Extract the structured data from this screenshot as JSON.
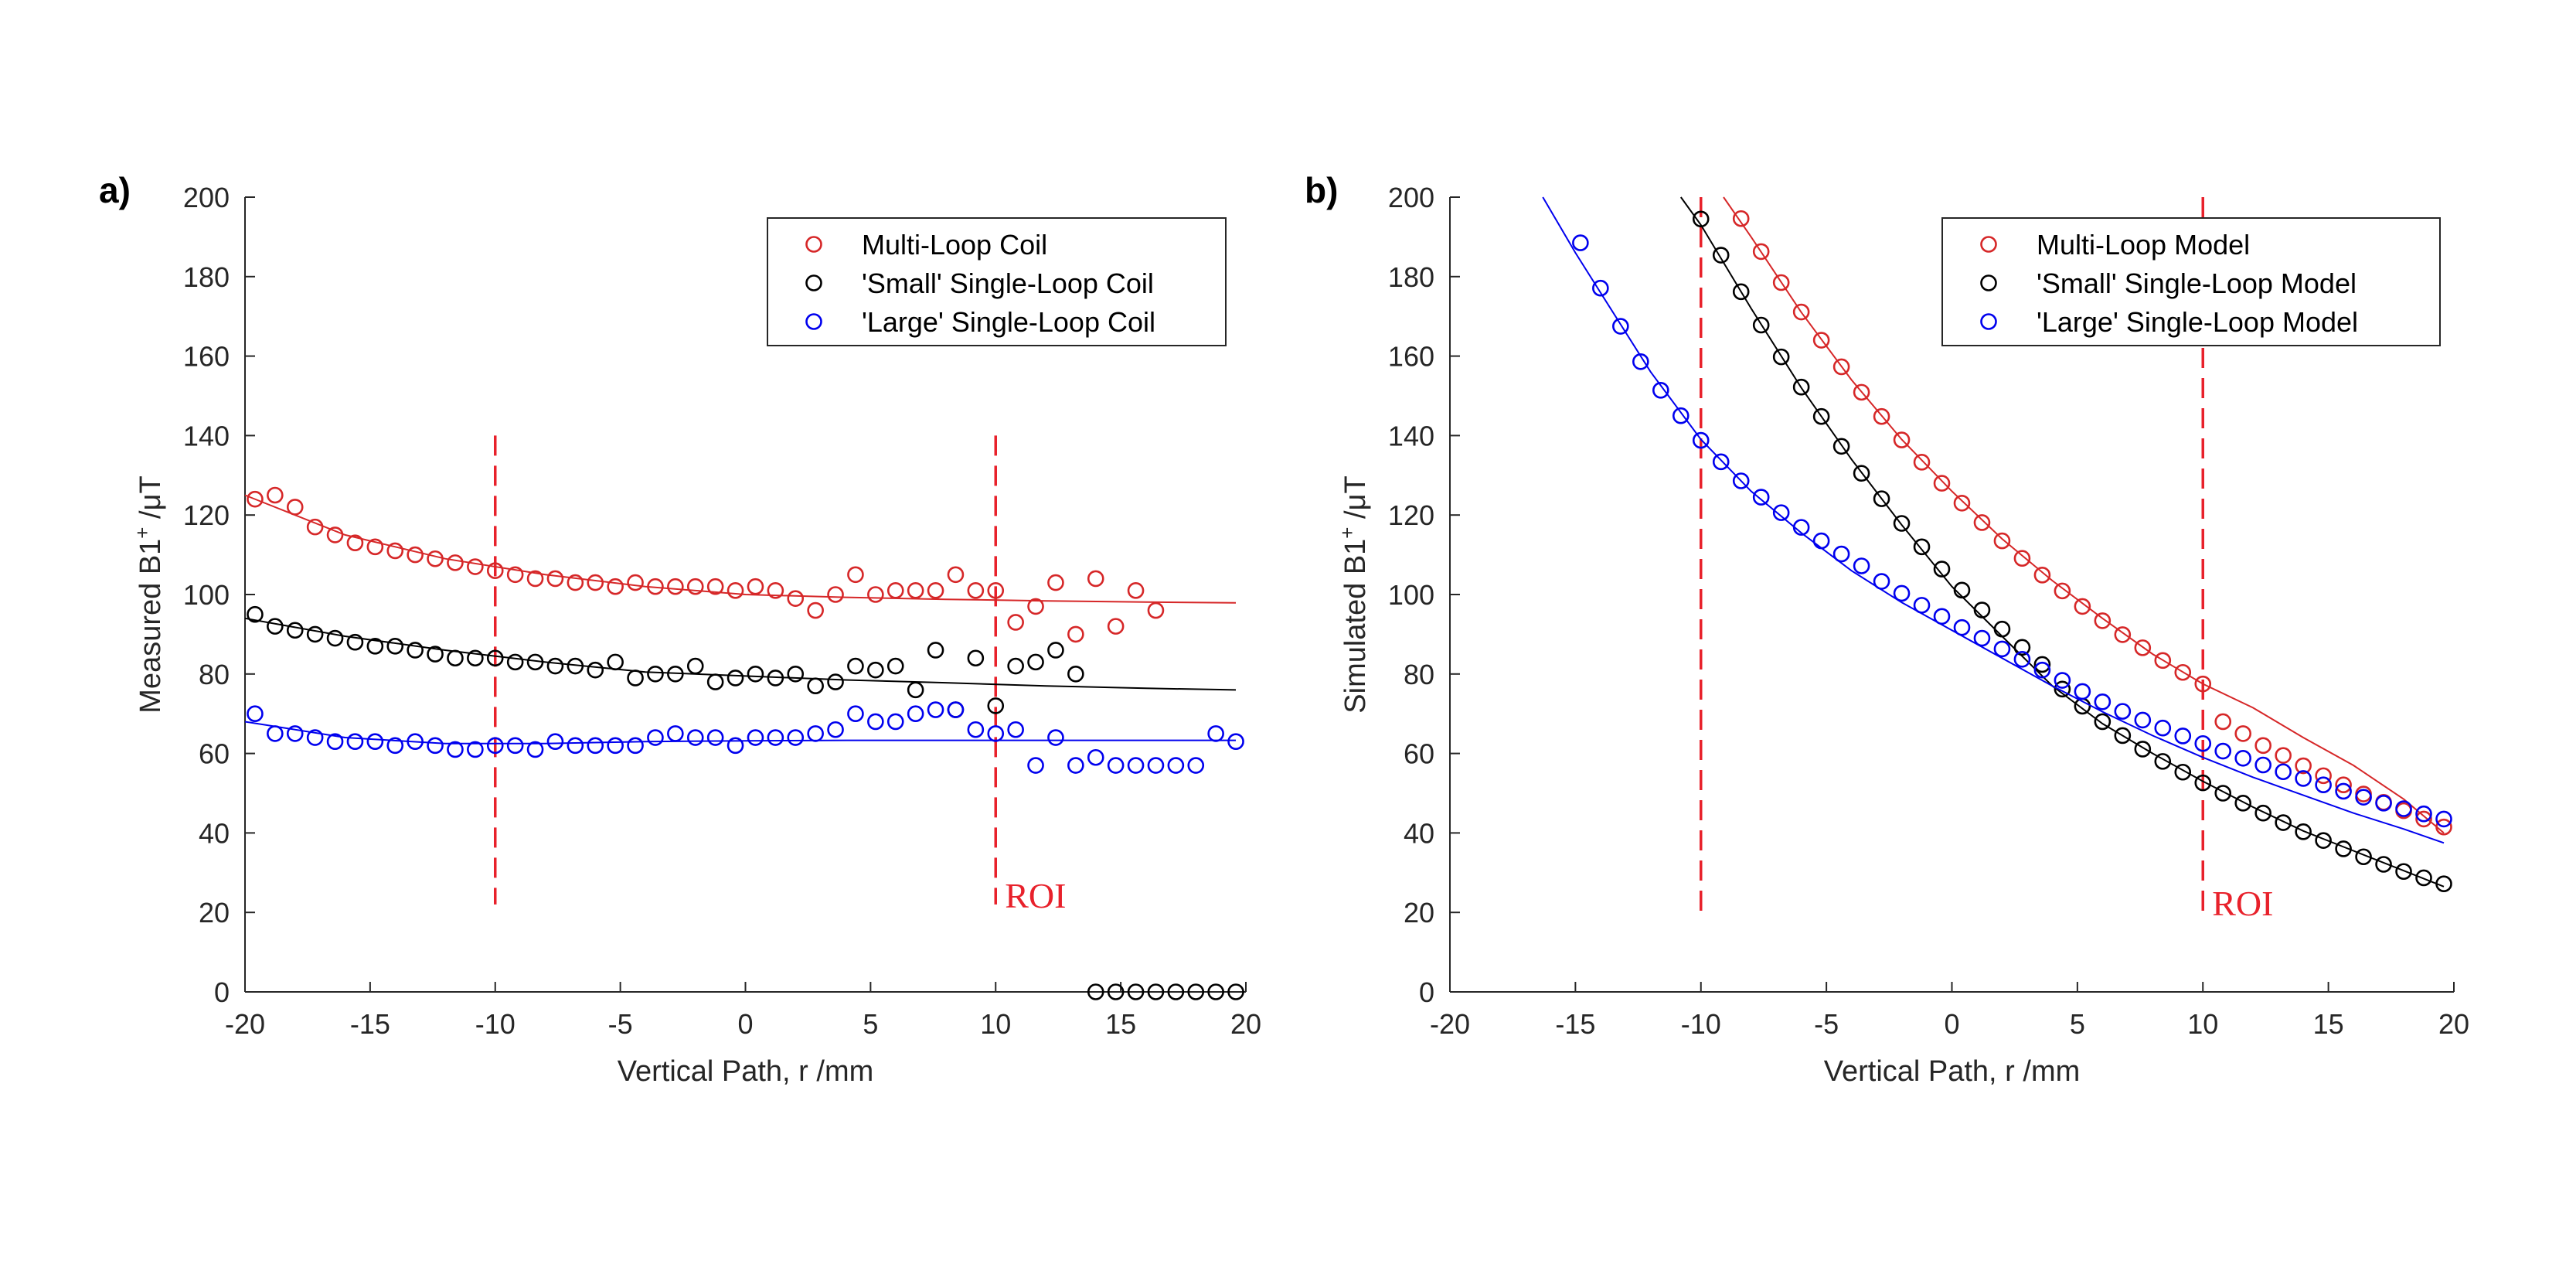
{
  "figure": {
    "colors": {
      "red": "#d62728",
      "black": "#000000",
      "blue": "#0000ee",
      "roi": "#e8212b",
      "axis": "#262626"
    }
  },
  "chart_data": [
    {
      "type": "scatter",
      "panel_label": "a)",
      "title": "",
      "xlabel": "Vertical Path, r /mm",
      "ylabel": "Measured B1⁺ /μT",
      "ylabel_parts": {
        "pre": "Measured B1",
        "sup": "+",
        "post": " /μT"
      },
      "xlim": [
        -20,
        20
      ],
      "ylim": [
        0,
        200
      ],
      "xticks": [
        -20,
        -15,
        -10,
        -5,
        0,
        5,
        10,
        15,
        20
      ],
      "yticks": [
        0,
        20,
        40,
        60,
        80,
        100,
        120,
        140,
        160,
        180,
        200
      ],
      "x_tick_labels": [
        "-20",
        "-15",
        "-10",
        "-5",
        "0",
        "5",
        "10",
        "15",
        "20"
      ],
      "y_tick_labels": [
        "0",
        "20",
        "40",
        "60",
        "80",
        "100",
        "120",
        "140",
        "160",
        "180",
        "200"
      ],
      "legend_position": "top-right",
      "roi": {
        "x": [
          -10,
          10
        ],
        "y_range": [
          22,
          140
        ],
        "label": "ROI"
      },
      "series": [
        {
          "name": "Multi-Loop Coil",
          "color": "#d62728",
          "x": [
            -19.6,
            -18.8,
            -18.0,
            -17.2,
            -16.4,
            -15.6,
            -14.8,
            -14.0,
            -13.2,
            -12.4,
            -11.6,
            -10.8,
            -10.0,
            -9.2,
            -8.4,
            -7.6,
            -6.8,
            -6.0,
            -5.2,
            -4.4,
            -3.6,
            -2.8,
            -2.0,
            -1.2,
            -0.4,
            0.4,
            1.2,
            2.0,
            2.8,
            3.6,
            4.4,
            5.2,
            6.0,
            6.8,
            7.6,
            8.4,
            9.2,
            10.0,
            10.8,
            11.6,
            12.4,
            13.2,
            14.0,
            14.8,
            15.6,
            16.4
          ],
          "y": [
            124,
            125,
            122,
            117,
            115,
            113,
            112,
            111,
            110,
            109,
            108,
            107,
            106,
            105,
            104,
            104,
            103,
            103,
            102,
            103,
            102,
            102,
            102,
            102,
            101,
            102,
            101,
            99,
            96,
            100,
            105,
            100,
            101,
            101,
            101,
            105,
            101,
            101,
            93,
            97,
            103,
            90,
            104,
            92,
            101,
            96
          ],
          "fit": {
            "x": [
              -20,
              -16,
              -12,
              -8,
              -4,
              0,
              4,
              8,
              12,
              16,
              19.6
            ],
            "y": [
              125,
              115,
              109,
              105,
              102,
              100,
              99.3,
              98.8,
              98.4,
              98.1,
              97.9
            ]
          }
        },
        {
          "name": "'Small' Single-Loop Coil",
          "color": "#000000",
          "x": [
            -19.6,
            -18.8,
            -18.0,
            -17.2,
            -16.4,
            -15.6,
            -14.8,
            -14.0,
            -13.2,
            -12.4,
            -11.6,
            -10.8,
            -10.0,
            -9.2,
            -8.4,
            -7.6,
            -6.8,
            -6.0,
            -5.2,
            -4.4,
            -3.6,
            -2.8,
            -2.0,
            -1.2,
            -0.4,
            0.4,
            1.2,
            2.0,
            2.8,
            3.6,
            4.4,
            5.2,
            6.0,
            6.8,
            7.6,
            8.4,
            9.2,
            10.0,
            10.8,
            11.6,
            12.4,
            13.2,
            14.0,
            14.8,
            15.6,
            16.4,
            17.2,
            18.0,
            18.8,
            19.6
          ],
          "y": [
            95,
            92,
            91,
            90,
            89,
            88,
            87,
            87,
            86,
            85,
            84,
            84,
            84,
            83,
            83,
            82,
            82,
            81,
            83,
            79,
            80,
            80,
            82,
            78,
            79,
            80,
            79,
            80,
            77,
            78,
            82,
            81,
            82,
            76,
            86,
            71,
            84,
            72,
            82,
            83,
            86,
            80,
            0,
            0,
            0,
            0,
            0,
            0,
            0,
            0
          ],
          "fit": {
            "x": [
              -20,
              -16,
              -12,
              -8,
              -4,
              0,
              4,
              8,
              12,
              16,
              19.6
            ],
            "y": [
              94,
              89.5,
              86,
              83,
              80.5,
              79.5,
              78.5,
              77.8,
              77,
              76.4,
              76
            ]
          }
        },
        {
          "name": "'Large' Single-Loop Coil",
          "color": "#0000ee",
          "x": [
            -19.6,
            -18.8,
            -18.0,
            -17.2,
            -16.4,
            -15.6,
            -14.8,
            -14.0,
            -13.2,
            -12.4,
            -11.6,
            -10.8,
            -10.0,
            -9.2,
            -8.4,
            -7.6,
            -6.8,
            -6.0,
            -5.2,
            -4.4,
            -3.6,
            -2.8,
            -2.0,
            -1.2,
            -0.4,
            0.4,
            1.2,
            2.0,
            2.8,
            3.6,
            4.4,
            5.2,
            6.0,
            6.8,
            7.6,
            8.4,
            9.2,
            10.0,
            10.8,
            11.6,
            12.4,
            13.2,
            14.0,
            14.8,
            15.6,
            16.4,
            17.2,
            18.0,
            18.8,
            19.6
          ],
          "y": [
            70,
            65,
            65,
            64,
            63,
            63,
            63,
            62,
            63,
            62,
            61,
            61,
            62,
            62,
            61,
            63,
            62,
            62,
            62,
            62,
            64,
            65,
            64,
            64,
            62,
            64,
            64,
            64,
            65,
            66,
            70,
            68,
            68,
            70,
            71,
            71,
            66,
            65,
            66,
            57,
            64,
            57,
            59,
            57,
            57,
            57,
            57,
            57,
            65,
            63
          ],
          "fit": {
            "x": [
              -20,
              -16,
              -12,
              -8,
              -4,
              0,
              4,
              8,
              12,
              16,
              19.6
            ],
            "y": [
              68,
              64,
              62.5,
              62.5,
              63,
              63.2,
              63.3,
              63.3,
              63.3,
              63.3,
              63.3
            ]
          }
        }
      ]
    },
    {
      "type": "scatter",
      "panel_label": "b)",
      "title": "",
      "xlabel": "Vertical Path, r /mm",
      "ylabel": "Simulated B1⁺ /μT",
      "ylabel_parts": {
        "pre": "Simulated B1",
        "sup": "+",
        "post": " /μT"
      },
      "xlim": [
        -20,
        20
      ],
      "ylim": [
        0,
        200
      ],
      "xticks": [
        -20,
        -15,
        -10,
        -5,
        0,
        5,
        10,
        15,
        20
      ],
      "yticks": [
        0,
        20,
        40,
        60,
        80,
        100,
        120,
        140,
        160,
        180,
        200
      ],
      "x_tick_labels": [
        "-20",
        "-15",
        "-10",
        "-5",
        "0",
        "5",
        "10",
        "15",
        "20"
      ],
      "y_tick_labels": [
        "0",
        "20",
        "40",
        "60",
        "80",
        "100",
        "120",
        "140",
        "160",
        "180",
        "200"
      ],
      "legend_position": "top-right",
      "roi": {
        "x": [
          -10,
          10
        ],
        "y_range": [
          20,
          200
        ],
        "label": "ROI"
      },
      "series": [
        {
          "name": "Multi-Loop Model",
          "color": "#d62728",
          "x": [
            -8.4,
            -7.6,
            -6.8,
            -6.0,
            -5.2,
            -4.4,
            -3.6,
            -2.8,
            -2.0,
            -1.2,
            -0.4,
            0.4,
            1.2,
            2.0,
            2.8,
            3.6,
            4.4,
            5.2,
            6.0,
            6.8,
            7.6,
            8.4,
            9.2,
            10.0,
            10.8,
            11.6,
            12.4,
            13.2,
            14.0,
            14.8,
            15.6,
            16.4,
            17.2,
            18.0,
            18.8,
            19.6
          ],
          "y": [
            194.6,
            186.3,
            178.5,
            171.1,
            164.0,
            157.3,
            150.9,
            144.8,
            138.9,
            133.3,
            128.0,
            123.0,
            118.1,
            113.5,
            109.1,
            104.9,
            100.9,
            97.0,
            93.4,
            89.9,
            86.6,
            83.4,
            80.4,
            77.5,
            68.0,
            65.0,
            62.0,
            59.5,
            56.9,
            54.4,
            52.1,
            49.8,
            47.7,
            45.6,
            43.5,
            41.5
          ],
          "fit": {
            "x": [
              -9.1,
              -8,
              -6,
              -4,
              -2,
              0,
              2,
              4,
              6,
              8,
              10,
              12,
              14,
              16,
              18,
              19.6
            ],
            "y": [
              200,
              190,
              171,
              154,
              139,
              126,
              114,
              103.5,
              94,
              85,
              77.5,
              71.5,
              64,
              57,
              48.5,
              40
            ]
          }
        },
        {
          "name": "'Small' Single-Loop Model",
          "color": "#000000",
          "x": [
            -10.0,
            -9.2,
            -8.4,
            -7.6,
            -6.8,
            -6.0,
            -5.2,
            -4.4,
            -3.6,
            -2.8,
            -2.0,
            -1.2,
            -0.4,
            0.4,
            1.2,
            2.0,
            2.8,
            3.6,
            4.4,
            5.2,
            6.0,
            6.8,
            7.6,
            8.4,
            9.2,
            10.0,
            10.8,
            11.6,
            12.4,
            13.2,
            14.0,
            14.8,
            15.6,
            16.4,
            17.2,
            18.0,
            18.8,
            19.6
          ],
          "y": [
            194.5,
            185.4,
            176.2,
            167.8,
            159.8,
            152.2,
            144.8,
            137.3,
            130.5,
            124.1,
            117.9,
            112.0,
            106.4,
            101.1,
            96.1,
            91.3,
            86.7,
            82.4,
            76.2,
            71.9,
            68.0,
            64.5,
            61.1,
            58.0,
            55.3,
            52.6,
            50.0,
            47.5,
            45.0,
            42.6,
            40.3,
            38.1,
            36.0,
            34.0,
            32.1,
            30.3,
            28.7,
            27.2
          ],
          "fit": {
            "x": [
              -10.8,
              -10,
              -8,
              -6,
              -4,
              -2,
              0,
              2,
              4,
              6,
              8,
              10,
              12,
              14,
              16,
              18,
              19.6
            ],
            "y": [
              200,
              193,
              172,
              152,
              134,
              117.5,
              102,
              89.5,
              77,
              67.5,
              60,
              53,
              46.5,
              40.5,
              35.5,
              30.5,
              26.5
            ]
          }
        },
        {
          "name": "'Large' Single-Loop Model",
          "color": "#0000ee",
          "x": [
            -14.8,
            -14.0,
            -13.2,
            -12.4,
            -11.6,
            -10.8,
            -10.0,
            -9.2,
            -8.4,
            -7.6,
            -6.8,
            -6.0,
            -5.2,
            -4.4,
            -3.6,
            -2.8,
            -2.0,
            -1.2,
            -0.4,
            0.4,
            1.2,
            2.0,
            2.8,
            3.6,
            4.4,
            5.2,
            6.0,
            6.8,
            7.6,
            8.4,
            9.2,
            10.0,
            10.8,
            11.6,
            12.4,
            13.2,
            14.0,
            14.8,
            15.6,
            16.4,
            17.2,
            18.0,
            18.8,
            19.6
          ],
          "y": [
            188.5,
            177.1,
            167.5,
            158.6,
            151.4,
            145.0,
            138.8,
            133.4,
            128.6,
            124.5,
            120.6,
            116.9,
            113.5,
            110.2,
            107.2,
            103.3,
            100.3,
            97.3,
            94.5,
            91.7,
            89.0,
            86.3,
            83.7,
            81.0,
            78.4,
            75.6,
            73.0,
            70.6,
            68.4,
            66.4,
            64.4,
            62.5,
            60.6,
            58.8,
            57.1,
            55.4,
            53.7,
            52.1,
            50.5,
            49.0,
            47.5,
            46.1,
            44.8,
            43.5
          ],
          "fit": {
            "x": [
              -16.3,
              -15,
              -14,
              -12,
              -10,
              -8,
              -6,
              -4,
              -2,
              0,
              2,
              4,
              6,
              8,
              10,
              12,
              14,
              16,
              18,
              19.6
            ],
            "y": [
              200,
              186,
              176,
              156,
              139,
              126,
              115.5,
              106,
              98,
              91,
              84,
              77,
              70.5,
              64.5,
              59,
              54,
              49.5,
              45,
              41,
              37.5
            ]
          }
        }
      ]
    }
  ]
}
